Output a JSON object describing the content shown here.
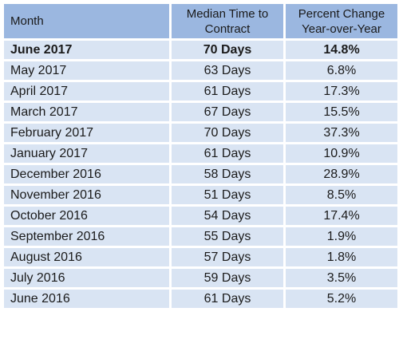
{
  "table": {
    "headers": {
      "month": "Month",
      "days": "Median Time to Contract",
      "pct": "Percent Change Year-over-Year"
    },
    "rows": [
      {
        "month": "June 2017",
        "days": "70 Days",
        "pct": "14.8%"
      },
      {
        "month": "May 2017",
        "days": "63 Days",
        "pct": "6.8%"
      },
      {
        "month": "April 2017",
        "days": "61 Days",
        "pct": "17.3%"
      },
      {
        "month": "March 2017",
        "days": "67 Days",
        "pct": "15.5%"
      },
      {
        "month": "February 2017",
        "days": "70 Days",
        "pct": "37.3%"
      },
      {
        "month": "January 2017",
        "days": "61 Days",
        "pct": "10.9%"
      },
      {
        "month": "December 2016",
        "days": "58 Days",
        "pct": "28.9%"
      },
      {
        "month": "November 2016",
        "days": "51 Days",
        "pct": "8.5%"
      },
      {
        "month": "October 2016",
        "days": "54 Days",
        "pct": "17.4%"
      },
      {
        "month": "September 2016",
        "days": "55 Days",
        "pct": "1.9%"
      },
      {
        "month": "August 2016",
        "days": "57 Days",
        "pct": "1.8%"
      },
      {
        "month": "July 2016",
        "days": "59 Days",
        "pct": "3.5%"
      },
      {
        "month": "June 2016",
        "days": "61 Days",
        "pct": "5.2%"
      }
    ]
  },
  "colors": {
    "header_bg": "#9bb7e0",
    "row_bg": "#d9e4f3"
  }
}
